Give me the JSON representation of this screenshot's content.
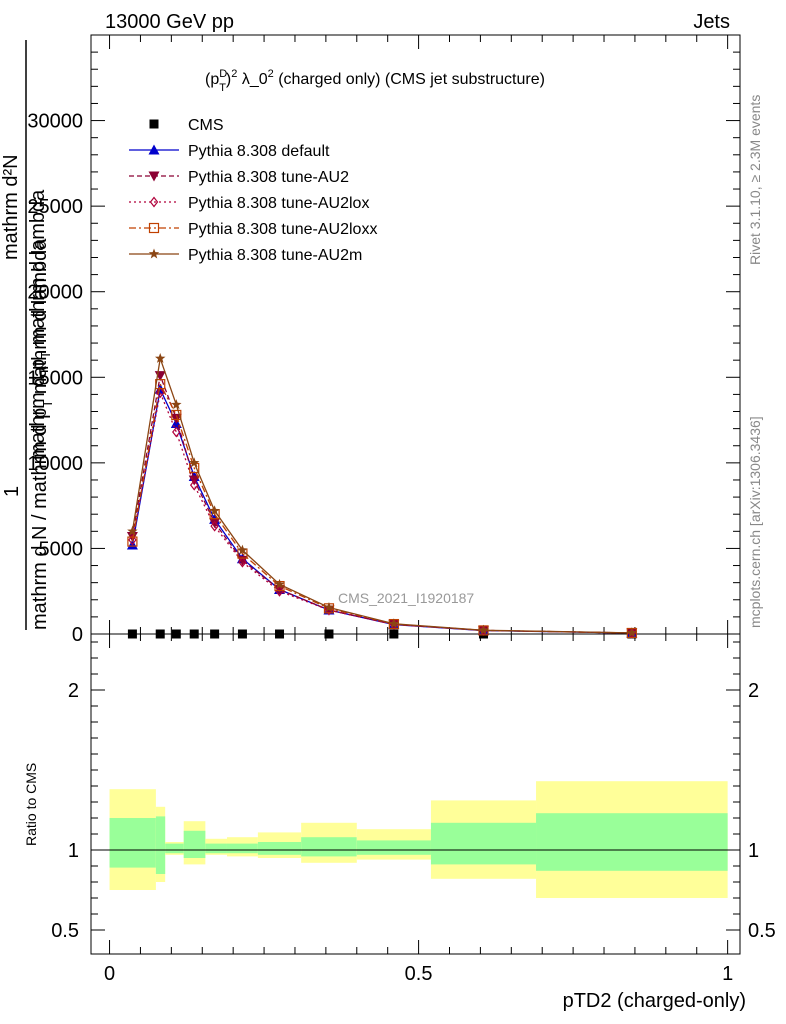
{
  "header": {
    "left": "13000 GeV pp",
    "right": "Jets"
  },
  "side_labels": {
    "rivet": "Rivet 3.1.10, ≥ 2.3M events",
    "mcplots": "mcplots.cern.ch [arXiv:1306.3436]"
  },
  "colors": {
    "cms": "#000000",
    "default": "#0000cc",
    "au2": "#8b0033",
    "au2lox": "#b0003a",
    "au2loxx": "#c04000",
    "au2m": "#8b4513",
    "band_yellow": "#ffff99",
    "band_green": "#99ff99"
  },
  "chart_data": [
    {
      "type": "line",
      "title_parts": {
        "p": "(p",
        "sup1": "D",
        "sub1": "T",
        "close": ")",
        "sup2": "2",
        "rest": " λ_0",
        "sup3": "2",
        "tail": " (charged only) (CMS jet substructure)"
      },
      "ylabel_parts": {
        "one": "1",
        "num": "mathrm d N / mathrm d p",
        "num_sub": "T",
        "num_tail": " mathrm d lambda",
        "den_top": "mathrm d²N",
        "den_mid": "mathrm d p",
        "den_sub": "T",
        "den_tail": " mathrm d lambda"
      },
      "watermark": "CMS_2021_I1920187",
      "ylim": [
        0,
        35000
      ],
      "yticks": [
        0,
        5000,
        10000,
        15000,
        20000,
        25000,
        30000
      ],
      "ytick_labels": [
        "0",
        "5000",
        "10000",
        "15000",
        "20000",
        "25000",
        "30000"
      ],
      "xlim": [
        -0.03,
        1.02
      ],
      "bins": [
        {
          "x": 0.037,
          "lo": 0.0,
          "hi": 0.075
        },
        {
          "x": 0.082,
          "lo": 0.075,
          "hi": 0.09
        },
        {
          "x": 0.108,
          "lo": 0.09,
          "hi": 0.12
        },
        {
          "x": 0.137,
          "lo": 0.12,
          "hi": 0.155
        },
        {
          "x": 0.17,
          "lo": 0.155,
          "hi": 0.19
        },
        {
          "x": 0.215,
          "lo": 0.19,
          "hi": 0.24
        },
        {
          "x": 0.275,
          "lo": 0.24,
          "hi": 0.31
        },
        {
          "x": 0.355,
          "lo": 0.31,
          "hi": 0.4
        },
        {
          "x": 0.46,
          "lo": 0.4,
          "hi": 0.52
        },
        {
          "x": 0.605,
          "lo": 0.52,
          "hi": 0.69
        },
        {
          "x": 0.845,
          "lo": 0.69,
          "hi": 1.0
        }
      ],
      "series": [
        {
          "name": "CMS",
          "key": "cms",
          "marker": "square",
          "values": [
            0,
            0,
            0,
            0,
            0,
            0,
            0,
            0,
            0,
            0,
            0
          ]
        },
        {
          "name": "Pythia 8.308 default",
          "key": "default",
          "marker": "triangle-up",
          "dash": "",
          "values": [
            5200,
            14300,
            12300,
            9200,
            6700,
            4400,
            2600,
            1400,
            550,
            200,
            60
          ]
        },
        {
          "name": "Pythia 8.308 tune-AU2",
          "key": "au2",
          "marker": "triangle-down",
          "dash": "5,3",
          "values": [
            5700,
            15100,
            12600,
            9000,
            6500,
            4300,
            2600,
            1400,
            560,
            210,
            60
          ]
        },
        {
          "name": "Pythia 8.308 tune-AU2lox",
          "key": "au2lox",
          "marker": "diamond",
          "dash": "2,3",
          "values": [
            5500,
            14100,
            11800,
            8700,
            6300,
            4200,
            2500,
            1400,
            560,
            210,
            60
          ]
        },
        {
          "name": "Pythia 8.308 tune-AU2loxx",
          "key": "au2loxx",
          "marker": "square-open",
          "dash": "7,3,2,3",
          "values": [
            5400,
            14600,
            12800,
            9700,
            7000,
            4700,
            2800,
            1500,
            580,
            210,
            60
          ]
        },
        {
          "name": "Pythia 8.308 tune-AU2m",
          "key": "au2m",
          "marker": "star",
          "dash": "",
          "values": [
            6000,
            16100,
            13400,
            10000,
            7200,
            4900,
            2900,
            1550,
            600,
            220,
            65
          ]
        }
      ]
    },
    {
      "type": "area",
      "ylabel": "Ratio to CMS",
      "xlabel": "pTD2 (charged-only)",
      "ylim": [
        0.35,
        2.35
      ],
      "yticks": [
        0.5,
        1,
        2
      ],
      "ytick_labels": [
        "0.5",
        "1",
        "2"
      ],
      "xticks": [
        0,
        0.5,
        1
      ],
      "xtick_labels": [
        "0",
        "0.5",
        "1"
      ],
      "bands": [
        {
          "lo": 0.0,
          "hi": 0.075,
          "y_lo": 0.75,
          "y_hi": 1.38,
          "g_lo": 0.89,
          "g_hi": 1.2
        },
        {
          "lo": 0.075,
          "hi": 0.09,
          "y_lo": 0.8,
          "y_hi": 1.27,
          "g_lo": 0.85,
          "g_hi": 1.21
        },
        {
          "lo": 0.09,
          "hi": 0.12,
          "y_lo": 0.97,
          "y_hi": 1.05,
          "g_lo": 0.98,
          "g_hi": 1.04
        },
        {
          "lo": 0.12,
          "hi": 0.155,
          "y_lo": 0.91,
          "y_hi": 1.18,
          "g_lo": 0.95,
          "g_hi": 1.12
        },
        {
          "lo": 0.155,
          "hi": 0.19,
          "y_lo": 0.97,
          "y_hi": 1.07,
          "g_lo": 0.98,
          "g_hi": 1.04
        },
        {
          "lo": 0.19,
          "hi": 0.24,
          "y_lo": 0.96,
          "y_hi": 1.08,
          "g_lo": 0.98,
          "g_hi": 1.04
        },
        {
          "lo": 0.24,
          "hi": 0.31,
          "y_lo": 0.95,
          "y_hi": 1.11,
          "g_lo": 0.97,
          "g_hi": 1.05
        },
        {
          "lo": 0.31,
          "hi": 0.4,
          "y_lo": 0.92,
          "y_hi": 1.17,
          "g_lo": 0.96,
          "g_hi": 1.08
        },
        {
          "lo": 0.4,
          "hi": 0.52,
          "y_lo": 0.94,
          "y_hi": 1.13,
          "g_lo": 0.97,
          "g_hi": 1.06
        },
        {
          "lo": 0.52,
          "hi": 0.69,
          "y_lo": 0.82,
          "y_hi": 1.31,
          "g_lo": 0.91,
          "g_hi": 1.17
        },
        {
          "lo": 0.69,
          "hi": 1.0,
          "y_lo": 0.7,
          "y_hi": 1.43,
          "g_lo": 0.87,
          "g_hi": 1.23
        }
      ]
    }
  ]
}
